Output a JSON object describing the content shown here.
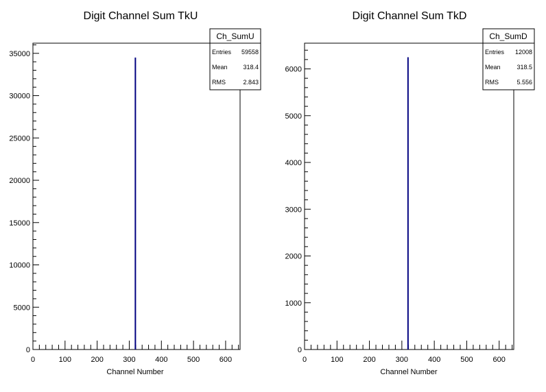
{
  "chart_data": [
    {
      "type": "bar",
      "title": "Digit Channel Sum TkU",
      "xlabel": "Channel Number",
      "ylabel": "",
      "xlim": [
        0,
        645
      ],
      "ylim": [
        0,
        36200
      ],
      "x_ticks": [
        0,
        100,
        200,
        300,
        400,
        500,
        600
      ],
      "y_ticks": [
        0,
        5000,
        10000,
        15000,
        20000,
        25000,
        30000,
        35000
      ],
      "grid": false,
      "color": "#000080",
      "bins": [
        {
          "x": 319,
          "value": 34500
        }
      ],
      "stats": {
        "name": "Ch_SumU",
        "rows": [
          {
            "label": "Entries",
            "value": "59558"
          },
          {
            "label": "Mean",
            "value": "318.4"
          },
          {
            "label": "RMS",
            "value": "2.843"
          }
        ]
      }
    },
    {
      "type": "bar",
      "title": "Digit Channel Sum TkD",
      "xlabel": "Channel Number",
      "ylabel": "",
      "xlim": [
        0,
        645
      ],
      "ylim": [
        0,
        6550
      ],
      "x_ticks": [
        0,
        100,
        200,
        300,
        400,
        500,
        600
      ],
      "y_ticks": [
        0,
        1000,
        2000,
        3000,
        4000,
        5000,
        6000
      ],
      "grid": false,
      "color": "#000080",
      "bins": [
        {
          "x": 319,
          "value": 6250
        }
      ],
      "stats": {
        "name": "Ch_SumD",
        "rows": [
          {
            "label": "Entries",
            "value": "12008"
          },
          {
            "label": "Mean",
            "value": "318.5"
          },
          {
            "label": "RMS",
            "value": "5.556"
          }
        ]
      }
    }
  ]
}
